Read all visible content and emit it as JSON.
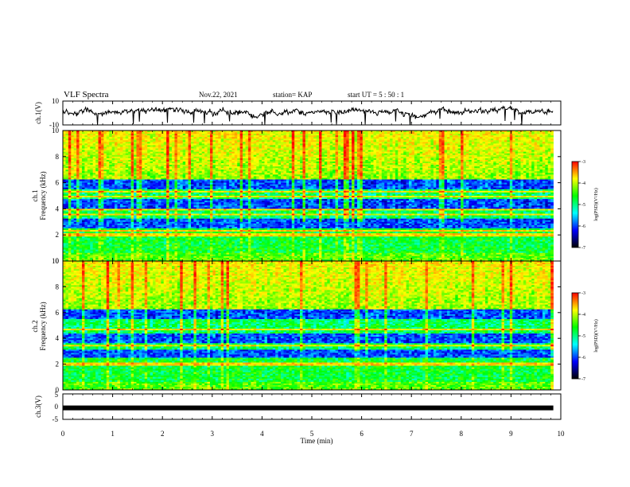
{
  "header": {
    "title": "VLF Spectra",
    "date": "Nov.22, 2021",
    "station": "station= KAP",
    "start": "start  UT  =   5  : 50 : 1"
  },
  "colorbar": {
    "label": "log(PSD)(V²/Hz)",
    "ticks": [
      "-3",
      "-4",
      "-5",
      "-6",
      "-7"
    ],
    "colors": [
      "#ff0000",
      "#ffff00",
      "#00ff00",
      "#00ffff",
      "#0000ff",
      "#000000"
    ]
  },
  "chart_data": [
    {
      "type": "line",
      "ylabel": "ch.1(V)",
      "ylim": [
        -10,
        10
      ],
      "yticks": [
        "10",
        "-10"
      ],
      "x_range": [
        0,
        10
      ],
      "series": [
        {
          "x": [
            0,
            9.85
          ],
          "y_level": 1
        }
      ]
    },
    {
      "type": "heatmap",
      "ylabel": "ch.1\nFrequency  (kHz)",
      "ylim": [
        0,
        10
      ],
      "yticks": [
        "0",
        "2",
        "4",
        "6",
        "8",
        "10"
      ],
      "x_extent": [
        0,
        9.85
      ],
      "color_range": [
        -7,
        -3
      ],
      "bright_bands_kHz": [
        2.0,
        2.3,
        3.6,
        3.9,
        4.9,
        5.3
      ],
      "dark_bands_kHz": [
        2.9,
        4.4,
        5.9
      ]
    },
    {
      "type": "heatmap",
      "ylabel": "ch.2\nFrequency  (kHz)",
      "ylim": [
        0,
        10
      ],
      "yticks": [
        "0",
        "2",
        "4",
        "6",
        "8",
        "10"
      ],
      "x_extent": [
        0,
        9.85
      ],
      "color_range": [
        -7,
        -3
      ],
      "bright_bands_kHz": [
        2.0,
        3.4,
        4.7
      ],
      "dark_bands_kHz": [
        2.8,
        4.0,
        5.9
      ]
    },
    {
      "type": "line",
      "ylabel": "ch.3(V)",
      "ylim": [
        -5,
        5
      ],
      "yticks": [
        "5",
        "0",
        "-5"
      ],
      "series": [
        {
          "x": [
            0,
            9.85
          ],
          "y": [
            -0.5,
            -0.5
          ]
        }
      ]
    }
  ],
  "xaxis": {
    "label": "Time  (min)",
    "range": [
      0,
      10
    ],
    "ticks": [
      "0",
      "1",
      "2",
      "3",
      "4",
      "5",
      "6",
      "7",
      "8",
      "9",
      "10"
    ]
  }
}
